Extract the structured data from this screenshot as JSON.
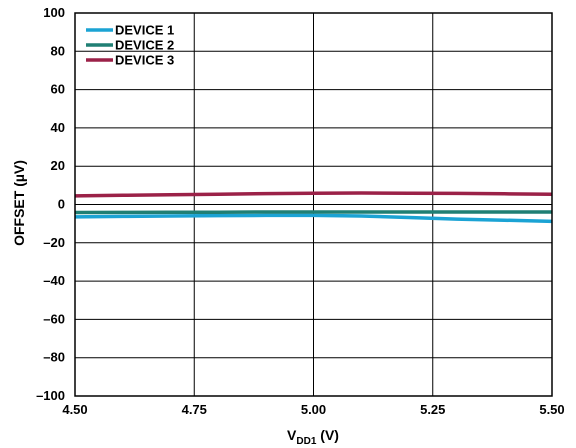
{
  "chart_data": {
    "type": "line",
    "xlabel_main": "V",
    "xlabel_sub": "DD1",
    "xlabel_unit": " (V)",
    "ylabel": "OFFSET (µV)",
    "xlim": [
      4.5,
      5.5
    ],
    "ylim": [
      -100,
      100
    ],
    "grid": true,
    "legend_position": "top-left",
    "x_ticks": [
      4.5,
      4.75,
      5.0,
      5.25,
      5.5
    ],
    "x_tick_labels": [
      "4.50",
      "4.75",
      "5.00",
      "5.25",
      "5.50"
    ],
    "y_ticks": [
      100,
      80,
      60,
      40,
      20,
      0,
      -20,
      -40,
      -60,
      -80,
      -100
    ],
    "y_tick_labels": [
      "100",
      "80",
      "60",
      "40",
      "20",
      "0",
      "–20",
      "–40",
      "–60",
      "–80",
      "–100"
    ],
    "series": [
      {
        "name": "DEVICE 1",
        "color": "#1ba3d4",
        "x": [
          4.5,
          4.6,
          4.7,
          4.8,
          4.9,
          5.0,
          5.1,
          5.2,
          5.3,
          5.4,
          5.5
        ],
        "y": [
          -6.5,
          -6.2,
          -6.0,
          -5.8,
          -5.7,
          -5.7,
          -6.0,
          -6.8,
          -7.6,
          -8.2,
          -8.8
        ]
      },
      {
        "name": "DEVICE 2",
        "color": "#1f7f74",
        "x": [
          4.5,
          4.6,
          4.7,
          4.8,
          4.9,
          5.0,
          5.1,
          5.2,
          5.3,
          5.4,
          5.5
        ],
        "y": [
          -4.2,
          -4.1,
          -4.0,
          -4.0,
          -3.9,
          -3.9,
          -3.9,
          -3.9,
          -3.9,
          -3.9,
          -3.9
        ]
      },
      {
        "name": "DEVICE 3",
        "color": "#9b2148",
        "x": [
          4.5,
          4.6,
          4.7,
          4.8,
          4.9,
          5.0,
          5.1,
          5.2,
          5.3,
          5.4,
          5.5
        ],
        "y": [
          4.5,
          4.8,
          5.1,
          5.4,
          5.7,
          5.9,
          6.0,
          5.9,
          5.8,
          5.6,
          5.4
        ]
      }
    ]
  }
}
